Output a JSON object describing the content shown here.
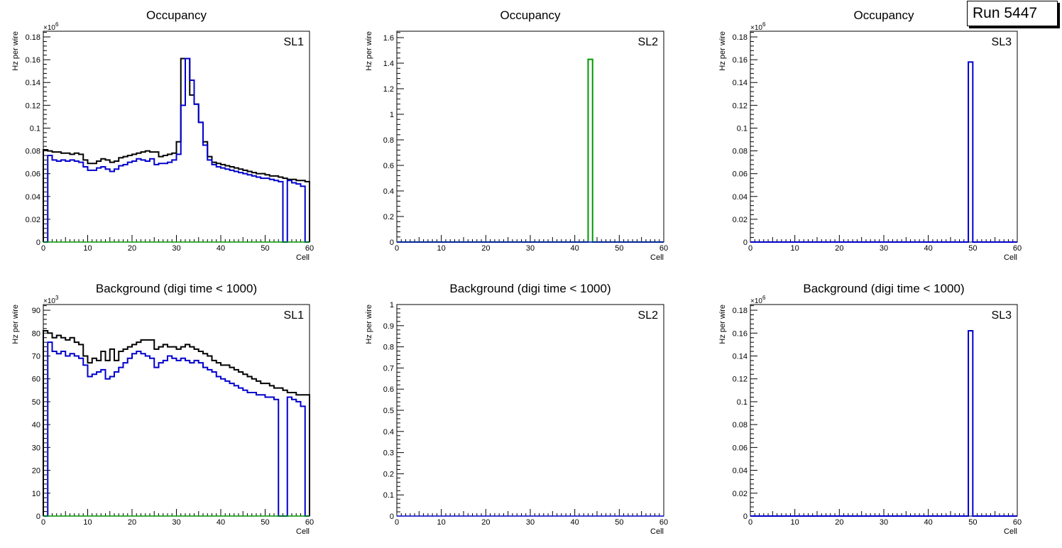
{
  "run_label": "Run 5447",
  "colors": {
    "black": "#000000",
    "blue": "#0000cc",
    "green": "#009900"
  },
  "chart_data": [
    {
      "type": "step-histogram",
      "title": "Occupancy",
      "corner_label": "SL1",
      "xlabel": "Cell",
      "ylabel": "Hz per wire",
      "exponent": "×10",
      "exponent_power": "6",
      "xlim": [
        0,
        60
      ],
      "ylim": [
        0,
        0.185
      ],
      "x_ticks": [
        0,
        10,
        20,
        30,
        40,
        50,
        60
      ],
      "x_tick_labels": [
        "0",
        "10",
        "20",
        "30",
        "40",
        "50",
        "60"
      ],
      "y_ticks": [
        0,
        0.02,
        0.04,
        0.06,
        0.08,
        0.1,
        0.12,
        0.14,
        0.16,
        0.18
      ],
      "y_tick_labels": [
        "0",
        "0.02",
        "0.04",
        "0.06",
        "0.08",
        "0.1",
        "0.12",
        "0.14",
        "0.16",
        "0.18"
      ],
      "series": [
        {
          "name": "layer-black",
          "color": "#000000",
          "values": [
            0.081,
            0.08,
            0.079,
            0.079,
            0.078,
            0.078,
            0.077,
            0.078,
            0.077,
            0.072,
            0.069,
            0.069,
            0.071,
            0.073,
            0.072,
            0.07,
            0.071,
            0.074,
            0.075,
            0.076,
            0.077,
            0.078,
            0.079,
            0.08,
            0.079,
            0.079,
            0.075,
            0.076,
            0.077,
            0.078,
            0.088,
            0.161,
            0.161,
            0.129,
            0.121,
            0.105,
            0.088,
            0.075,
            0.07,
            0.069,
            0.068,
            0.067,
            0.066,
            0.065,
            0.064,
            0.063,
            0.062,
            0.061,
            0.06,
            0.06,
            0.059,
            0.058,
            0.058,
            0.057,
            0.056,
            0.055,
            0.055,
            0.054,
            0.054,
            0.053
          ]
        },
        {
          "name": "layer-blue",
          "color": "#0000cc",
          "values": [
            0.0,
            0.076,
            0.072,
            0.071,
            0.072,
            0.071,
            0.072,
            0.071,
            0.07,
            0.066,
            0.063,
            0.063,
            0.065,
            0.066,
            0.064,
            0.062,
            0.064,
            0.067,
            0.068,
            0.07,
            0.071,
            0.073,
            0.072,
            0.071,
            0.073,
            0.068,
            0.069,
            0.069,
            0.07,
            0.072,
            0.077,
            0.12,
            0.161,
            0.142,
            0.121,
            0.105,
            0.085,
            0.072,
            0.068,
            0.066,
            0.065,
            0.064,
            0.063,
            0.062,
            0.061,
            0.06,
            0.059,
            0.058,
            0.057,
            0.056,
            0.056,
            0.055,
            0.054,
            0.053,
            0.0,
            0.054,
            0.052,
            0.051,
            0.049,
            0.0
          ]
        },
        {
          "name": "layer-green",
          "color": "#009900",
          "values": "zeros"
        }
      ]
    },
    {
      "type": "step-histogram",
      "title": "Occupancy",
      "corner_label": "SL2",
      "xlabel": "Cell",
      "ylabel": "Hz per wire",
      "exponent": "",
      "exponent_power": "",
      "xlim": [
        0,
        60
      ],
      "ylim": [
        0,
        1.65
      ],
      "x_ticks": [
        0,
        10,
        20,
        30,
        40,
        50,
        60
      ],
      "x_tick_labels": [
        "0",
        "10",
        "20",
        "30",
        "40",
        "50",
        "60"
      ],
      "y_ticks": [
        0,
        0.2,
        0.4,
        0.6,
        0.8,
        1,
        1.2,
        1.4,
        1.6
      ],
      "y_tick_labels": [
        "0",
        "0.2",
        "0.4",
        "0.6",
        "0.8",
        "1",
        "1.2",
        "1.4",
        "1.6"
      ],
      "series": [
        {
          "name": "layer-green",
          "color": "#009900",
          "spikes": [
            [
              43,
              1.43
            ]
          ]
        },
        {
          "name": "layer-blue",
          "color": "#0000cc",
          "values": "zeros"
        }
      ]
    },
    {
      "type": "step-histogram",
      "title": "Occupancy",
      "corner_label": "SL3",
      "xlabel": "Cell",
      "ylabel": "Hz per wire",
      "exponent": "×10",
      "exponent_power": "6",
      "xlim": [
        0,
        60
      ],
      "ylim": [
        0,
        0.185
      ],
      "x_ticks": [
        0,
        10,
        20,
        30,
        40,
        50,
        60
      ],
      "x_tick_labels": [
        "0",
        "10",
        "20",
        "30",
        "40",
        "50",
        "60"
      ],
      "y_ticks": [
        0,
        0.02,
        0.04,
        0.06,
        0.08,
        0.1,
        0.12,
        0.14,
        0.16,
        0.18
      ],
      "y_tick_labels": [
        "0",
        "0.02",
        "0.04",
        "0.06",
        "0.08",
        "0.1",
        "0.12",
        "0.14",
        "0.16",
        "0.18"
      ],
      "series": [
        {
          "name": "layer-blue",
          "color": "#0000cc",
          "spikes": [
            [
              49,
              0.158
            ]
          ]
        }
      ]
    },
    {
      "type": "step-histogram",
      "title": "Background (digi time < 1000)",
      "corner_label": "SL1",
      "xlabel": "Cell",
      "ylabel": "Hz per wire",
      "exponent": "×10",
      "exponent_power": "3",
      "xlim": [
        0,
        60
      ],
      "ylim": [
        0,
        92.5
      ],
      "x_ticks": [
        0,
        10,
        20,
        30,
        40,
        50,
        60
      ],
      "x_tick_labels": [
        "0",
        "10",
        "20",
        "30",
        "40",
        "50",
        "60"
      ],
      "y_ticks": [
        0,
        10,
        20,
        30,
        40,
        50,
        60,
        70,
        80,
        90
      ],
      "y_tick_labels": [
        "0",
        "10",
        "20",
        "30",
        "40",
        "50",
        "60",
        "70",
        "80",
        "90"
      ],
      "series": [
        {
          "name": "layer-black",
          "color": "#000000",
          "values": [
            81,
            80,
            78,
            79,
            78,
            77,
            78,
            76,
            75,
            70,
            67,
            69,
            68,
            72,
            68,
            73,
            68,
            72,
            73,
            74,
            75,
            76,
            77,
            77,
            77,
            73,
            74,
            75,
            74,
            74,
            73,
            74,
            75,
            74,
            73,
            72,
            71,
            70,
            68,
            67,
            66,
            66,
            65,
            64,
            63,
            62,
            61,
            60,
            59,
            58,
            58,
            57,
            56,
            56,
            55,
            54,
            54,
            53,
            53,
            53
          ]
        },
        {
          "name": "layer-blue",
          "color": "#0000cc",
          "values": [
            0,
            76,
            72,
            71,
            72,
            70,
            71,
            70,
            69,
            66,
            61,
            62,
            63,
            64,
            60,
            61,
            63,
            65,
            67,
            69,
            71,
            72,
            71,
            70,
            69,
            65,
            67,
            68,
            70,
            69,
            68,
            69,
            68,
            67,
            68,
            67,
            65,
            64,
            63,
            61,
            60,
            59,
            58,
            57,
            56,
            55,
            54,
            54,
            53,
            53,
            52,
            52,
            51,
            0,
            0,
            52,
            51,
            50,
            48,
            0
          ]
        },
        {
          "name": "layer-green",
          "color": "#009900",
          "values": "zeros"
        }
      ]
    },
    {
      "type": "step-histogram",
      "title": "Background (digi time < 1000)",
      "corner_label": "SL2",
      "xlabel": "Cell",
      "ylabel": "Hz per wire",
      "exponent": "",
      "exponent_power": "",
      "xlim": [
        0,
        60
      ],
      "ylim": [
        0,
        1.0
      ],
      "x_ticks": [
        0,
        10,
        20,
        30,
        40,
        50,
        60
      ],
      "x_tick_labels": [
        "0",
        "10",
        "20",
        "30",
        "40",
        "50",
        "60"
      ],
      "y_ticks": [
        0,
        0.1,
        0.2,
        0.3,
        0.4,
        0.5,
        0.6,
        0.7,
        0.8,
        0.9,
        1
      ],
      "y_tick_labels": [
        "0",
        "0.1",
        "0.2",
        "0.3",
        "0.4",
        "0.5",
        "0.6",
        "0.7",
        "0.8",
        "0.9",
        "1"
      ],
      "series": [
        {
          "name": "layer-blue",
          "color": "#0000cc",
          "values": "zeros"
        }
      ]
    },
    {
      "type": "step-histogram",
      "title": "Background (digi time < 1000)",
      "corner_label": "SL3",
      "xlabel": "Cell",
      "ylabel": "Hz per wire",
      "exponent": "×10",
      "exponent_power": "6",
      "xlim": [
        0,
        60
      ],
      "ylim": [
        0,
        0.185
      ],
      "x_ticks": [
        0,
        10,
        20,
        30,
        40,
        50,
        60
      ],
      "x_tick_labels": [
        "0",
        "10",
        "20",
        "30",
        "40",
        "50",
        "60"
      ],
      "y_ticks": [
        0,
        0.02,
        0.04,
        0.06,
        0.08,
        0.1,
        0.12,
        0.14,
        0.16,
        0.18
      ],
      "y_tick_labels": [
        "0",
        "0.02",
        "0.04",
        "0.06",
        "0.08",
        "0.1",
        "0.12",
        "0.14",
        "0.16",
        "0.18"
      ],
      "series": [
        {
          "name": "layer-blue",
          "color": "#0000cc",
          "spikes": [
            [
              49,
              0.162
            ]
          ]
        }
      ]
    }
  ]
}
